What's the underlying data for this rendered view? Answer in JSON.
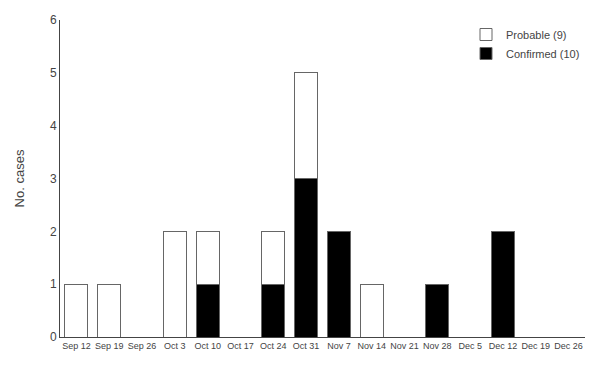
{
  "chart_data": {
    "type": "bar",
    "stacked": true,
    "categories": [
      "Sep 12",
      "Sep 19",
      "Sep 26",
      "Oct 3",
      "Oct 10",
      "Oct 17",
      "Oct 24",
      "Oct 31",
      "Nov 7",
      "Nov 14",
      "Nov 21",
      "Nov 28",
      "Dec 5",
      "Dec 12",
      "Dec 19",
      "Dec 26"
    ],
    "series": [
      {
        "name": "Confirmed (10)",
        "color": "#000000",
        "values": [
          0,
          0,
          0,
          0,
          1,
          0,
          1,
          3,
          2,
          0,
          0,
          1,
          0,
          2,
          0,
          0
        ]
      },
      {
        "name": "Probable (9)",
        "color": "#ffffff",
        "values": [
          1,
          1,
          0,
          2,
          1,
          0,
          1,
          2,
          0,
          1,
          0,
          0,
          0,
          0,
          0,
          0
        ]
      }
    ],
    "ylabel": "No. cases",
    "ylim": [
      0,
      6
    ],
    "yticks": [
      0,
      1,
      2,
      3,
      4,
      5,
      6
    ],
    "grid": false,
    "legend": "upper right"
  }
}
